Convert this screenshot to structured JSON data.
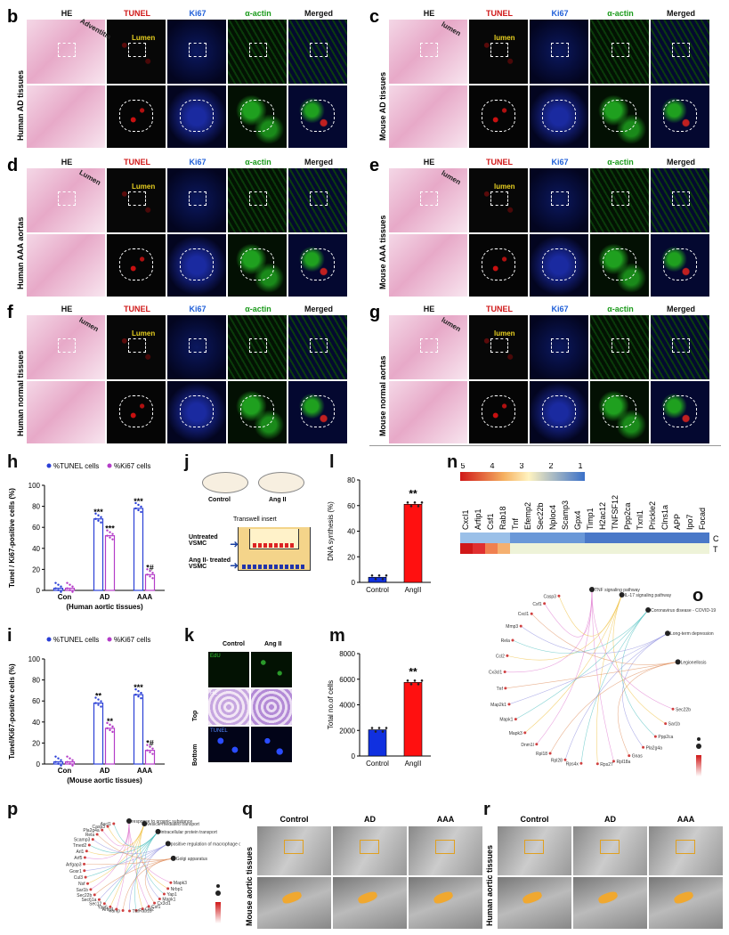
{
  "panels": {
    "b": {
      "label": "b",
      "side": "Human AD tissues",
      "anno1": "Adventitia",
      "anno2": "Lumen"
    },
    "c": {
      "label": "c",
      "side": "Mouse AD tissues",
      "anno1": "lumen",
      "anno2": "lumen"
    },
    "d": {
      "label": "d",
      "side": "Human AAA aortas",
      "anno1": "Lumen",
      "anno2": "Lumen"
    },
    "e": {
      "label": "e",
      "side": "Mouse AAA tissues",
      "anno1": "lumen",
      "anno2": "lumen"
    },
    "f": {
      "label": "f",
      "side": "Human normal tissues",
      "anno1": "lumen",
      "anno2": "Lumen"
    },
    "g": {
      "label": "g",
      "side": "Mouse normal aortas",
      "anno1": "lumen",
      "anno2": "lumen"
    }
  },
  "stain_headers": [
    "HE",
    "TUNEL",
    "Ki67",
    "α-actin",
    "Merged"
  ],
  "header_colors": [
    "#111111",
    "#d01818",
    "#1f5fd8",
    "#1a9a1a",
    "#111111"
  ],
  "chart_h": {
    "label": "h",
    "legend": [
      "%TUNEL cells",
      "%Ki67 cells"
    ],
    "ylabel": "Tunel / Ki67-positive cells (%)",
    "xlabel": "(Human aortic tissues)",
    "categories": [
      "Con",
      "AD",
      "AAA"
    ],
    "series": [
      {
        "name": "%TUNEL cells",
        "values": [
          2,
          68,
          78
        ]
      },
      {
        "name": "%Ki67 cells",
        "values": [
          2,
          52,
          15
        ]
      }
    ],
    "sig": [
      "***",
      "***",
      "***",
      "*#"
    ],
    "ylim": [
      0,
      100
    ],
    "ticks": [
      "0",
      "20",
      "40",
      "60",
      "80",
      "100"
    ],
    "colors": [
      "#2a3fd6",
      "#b43cc8"
    ]
  },
  "chart_i": {
    "label": "i",
    "legend": [
      "%TUNEL cells",
      "%Ki67 cells"
    ],
    "ylabel": "Tunel/Ki67-positive cells (%)",
    "xlabel": "(Mouse aortic tissues)",
    "categories": [
      "Con",
      "AD",
      "AAA"
    ],
    "series": [
      {
        "name": "%TUNEL cells",
        "values": [
          2,
          58,
          66
        ]
      },
      {
        "name": "%Ki67 cells",
        "values": [
          2,
          34,
          13
        ]
      }
    ],
    "sig": [
      "**",
      "**",
      "***",
      "*#"
    ],
    "ylim": [
      0,
      100
    ],
    "ticks": [
      "0",
      "20",
      "40",
      "60",
      "80",
      "100"
    ],
    "colors": [
      "#2a3fd6",
      "#b43cc8"
    ]
  },
  "panel_j": {
    "label": "j",
    "dish1": "Control",
    "dish2": "Ang II",
    "insert": "Transwell insert",
    "left1": "Untreated VSMC",
    "left2": "Ang II- treated VSMC"
  },
  "panel_k": {
    "label": "k",
    "col1": "Control",
    "col2": "Ang II",
    "r1": "EdU",
    "r2": "HE",
    "r3": "TUNEL",
    "top": "Top",
    "bottom": "Bottom"
  },
  "chart_l": {
    "label": "l",
    "type": "bar",
    "ylabel": "DNA synthesis (%)",
    "categories": [
      "Control",
      "AngII"
    ],
    "values": [
      4,
      61
    ],
    "ylim": [
      0,
      80
    ],
    "ticks": [
      "0",
      "20",
      "40",
      "60",
      "80"
    ],
    "sig": "**",
    "colors": [
      "#1030e0",
      "#ff1010"
    ]
  },
  "chart_m": {
    "label": "m",
    "type": "bar",
    "ylabel": "Total no.of cells",
    "categories": [
      "Control",
      "AngII"
    ],
    "values": [
      2050,
      5750
    ],
    "ylim": [
      0,
      8000
    ],
    "ticks": [
      "0",
      "2000",
      "4000",
      "6000",
      "8000"
    ],
    "sig": "**",
    "colors": [
      "#1030e0",
      "#ff1010"
    ]
  },
  "heatmap_n": {
    "label": "n",
    "scale": [
      "5",
      "4",
      "3",
      "2",
      "1"
    ],
    "genes": [
      "Cxcl1",
      "Arfip1",
      "Csf1",
      "Rab18",
      "Tnf",
      "Efemp2",
      "Sec22b",
      "Nploc4",
      "Scamp3",
      "Gpx4",
      "Timp1",
      "H2ac12",
      "TNFSF12",
      "Ppp2ca",
      "Txnl1",
      "Prickle2",
      "Clns1a",
      "APP",
      "Ipo7",
      "Focad"
    ],
    "rows": [
      "C",
      "T"
    ]
  },
  "network_o": {
    "label": "o",
    "terms": [
      "TNF signaling pathway",
      "IL-17 signaling pathway",
      "Coronavirus disease - COVID-19",
      "Long-term depression",
      "Legionellosis"
    ],
    "genes": [
      "Sec22b",
      "Sar1b",
      "Ppp2ca",
      "Pla2g4a",
      "Gnas",
      "Rpl18a",
      "Rps27",
      "Rps4x",
      "Rpl28",
      "Rpl18",
      "Dnm1l",
      "Mapk3",
      "Mapk1",
      "Map2k1",
      "Tnf",
      "Cx3cl1",
      "Ccl2",
      "Rela",
      "Mmp3",
      "Cxcl1",
      "Csf1",
      "Casp3"
    ]
  },
  "network_p": {
    "label": "p",
    "terms": [
      "response to organic substance",
      "vesicle-mediated transport",
      "intracellular protein transport",
      "positive regulation of macrophage chemotaxis",
      "Golgi apparatus"
    ],
    "genes": [
      "Mapk3",
      "Nrbp1",
      "Yap1",
      "Mapk1",
      "Cx3cl1",
      "Csf1",
      "Ccl2",
      "Rab18",
      "Tnf",
      "Vamp",
      "Arfip1",
      "Yap6",
      "Sec12",
      "Sec61a",
      "Sec22b",
      "Sar1b",
      "Nsf",
      "Cul3",
      "Gosr1",
      "Arfgap3",
      "Arf5",
      "Arl1",
      "Tmed2",
      "Scamp3",
      "Rela",
      "Pla2g4a",
      "Casp3",
      "Ascl1"
    ]
  },
  "panel_q": {
    "label": "q",
    "side": "Mouse aortic tissues",
    "cols": [
      "Control",
      "AD",
      "AAA"
    ]
  },
  "panel_r": {
    "label": "r",
    "side": "Human aortic tissues",
    "cols": [
      "Control",
      "AD",
      "AAA"
    ]
  }
}
